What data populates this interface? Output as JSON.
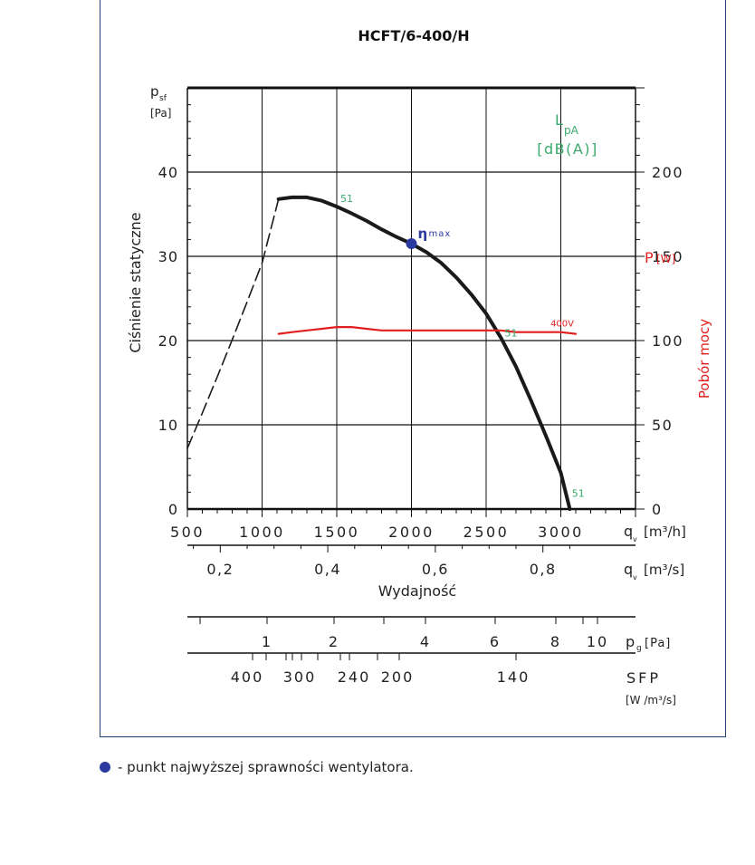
{
  "chart_data": {
    "type": "line",
    "title": "HCFT/6-400/H",
    "y_left": {
      "symbol": "p",
      "symbol_sub": "sf",
      "unit": "[Pa]",
      "label": "Ciśnienie statyczne",
      "range": [
        0,
        50
      ],
      "ticks": [
        0,
        10,
        20,
        30,
        40
      ]
    },
    "y_right": {
      "symbol": "P",
      "unit": "[W]",
      "label": "Pobór mocy",
      "range": [
        0,
        250
      ],
      "ticks": [
        0,
        50,
        100,
        150,
        200
      ]
    },
    "x": {
      "symbol": "q",
      "symbol_sub": "v",
      "unit": "[m³/h]",
      "range": [
        500,
        3500
      ],
      "ticks": [
        500,
        1000,
        1500,
        2000,
        2500,
        3000
      ]
    },
    "x2": {
      "unit": "[m³/s]",
      "ticks": [
        0.2,
        0.4,
        0.6,
        0.8
      ],
      "tick_labels": [
        "0,2",
        "0,4",
        "0,6",
        "0,8"
      ]
    },
    "xlabel": "Wydajność",
    "pg_scale": {
      "label": "p",
      "label_sub": "g",
      "unit": "[Pa]",
      "ticks": [
        1,
        2,
        4,
        6,
        8,
        10
      ]
    },
    "sfp_scale": {
      "label": "SFP",
      "unit": "[W /m³/s]",
      "ticks": [
        "400",
        "300",
        "240",
        "200",
        "140"
      ]
    },
    "lpa": {
      "symbol": "L",
      "symbol_sub": "pA",
      "unit": "[dB(A)]",
      "color": "#3aa86b",
      "markers": [
        {
          "x": 1500,
          "y": 37,
          "label": "51"
        },
        {
          "x": 2600,
          "y": 21,
          "label": "51"
        },
        {
          "x": 3050,
          "y": 2,
          "label": "51"
        }
      ]
    },
    "series": [
      {
        "kind": "pressure",
        "color": "#1a1a1a",
        "x": [
          1110,
          1200,
          1300,
          1400,
          1500,
          1600,
          1700,
          1800,
          1900,
          2000,
          2100,
          2200,
          2300,
          2400,
          2500,
          2600,
          2700,
          2800,
          2900,
          3000,
          3060
        ],
        "y": [
          36.8,
          37.0,
          37.0,
          36.6,
          35.9,
          35.1,
          34.2,
          33.2,
          32.3,
          31.5,
          30.5,
          29.2,
          27.5,
          25.5,
          23.2,
          20.3,
          16.9,
          12.9,
          8.7,
          4.3,
          0.0
        ]
      },
      {
        "kind": "pressure-unstable",
        "color": "#1a1a1a",
        "dashed": true,
        "x": [
          500,
          600,
          700,
          800,
          900,
          1000,
          1110
        ],
        "y": [
          7.2,
          11.4,
          15.7,
          20.1,
          24.6,
          29.2,
          36.8
        ]
      },
      {
        "kind": "power",
        "name": "400V",
        "color": "#e02020",
        "axis": "right",
        "x": [
          1110,
          1200,
          1300,
          1400,
          1500,
          1600,
          1700,
          1800,
          1900,
          2000,
          2100,
          2200,
          2300,
          2400,
          2500,
          2600,
          2700,
          2800,
          2900,
          3000,
          3100
        ],
        "y": [
          104,
          105,
          106,
          107,
          108,
          108,
          107,
          106,
          106,
          106,
          106,
          106,
          106,
          106,
          106,
          106,
          105,
          105,
          105,
          105,
          104
        ]
      }
    ],
    "eta_max": {
      "x": 2000,
      "y": 31.5,
      "symbol": "η",
      "label": "max",
      "color": "#2b3aa0"
    },
    "grid": true
  },
  "legend_note": "- punkt najwyższej sprawności wentylatora."
}
